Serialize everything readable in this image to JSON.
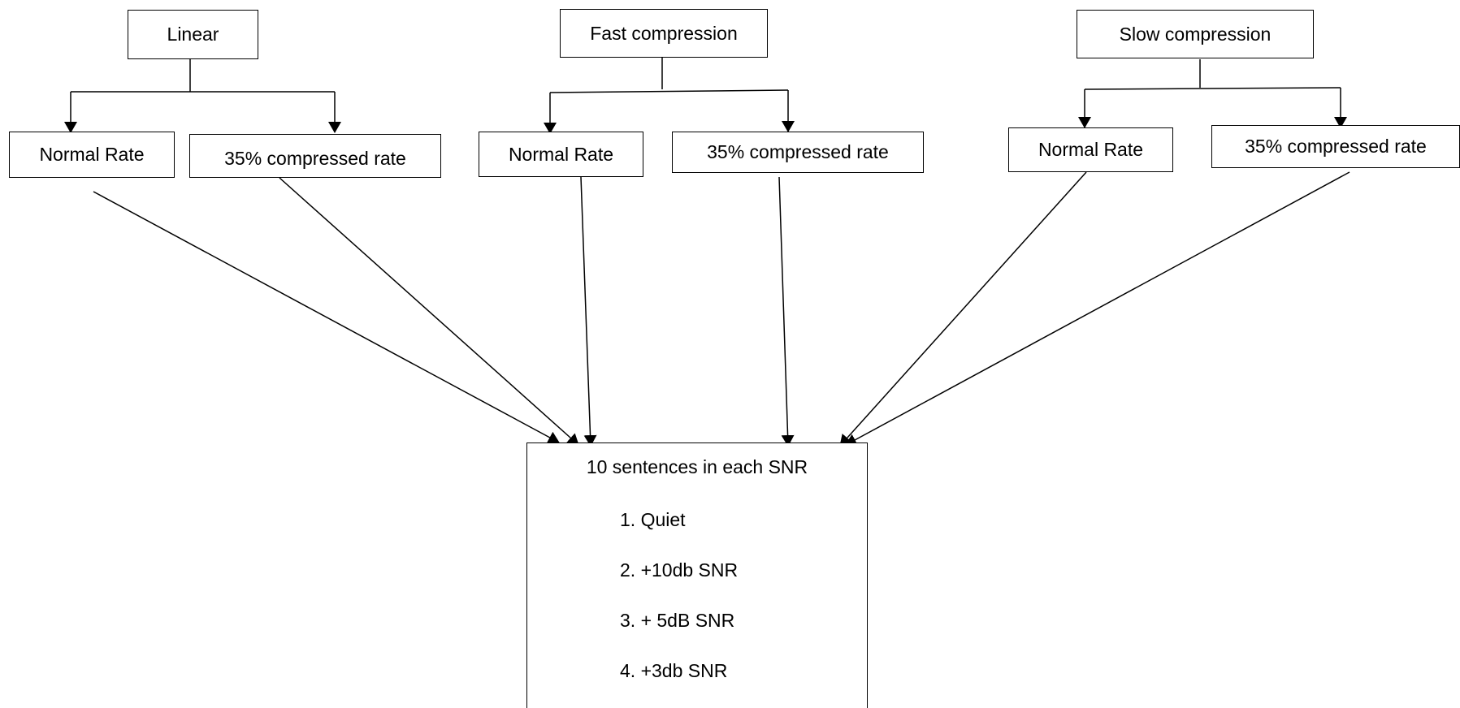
{
  "diagram": {
    "groups": [
      {
        "title": "Linear",
        "rates": [
          "Normal Rate",
          "35% compressed rate"
        ]
      },
      {
        "title": "Fast compression",
        "rates": [
          "Normal Rate",
          "35% compressed rate"
        ]
      },
      {
        "title": "Slow  compression",
        "rates": [
          "Normal Rate",
          "35% compressed rate"
        ]
      }
    ],
    "result": {
      "title": "10 sentences in each SNR",
      "conditions": [
        "1. Quiet",
        "2. +10db SNR",
        "3. + 5dB SNR",
        "4. +3db SNR"
      ]
    }
  }
}
